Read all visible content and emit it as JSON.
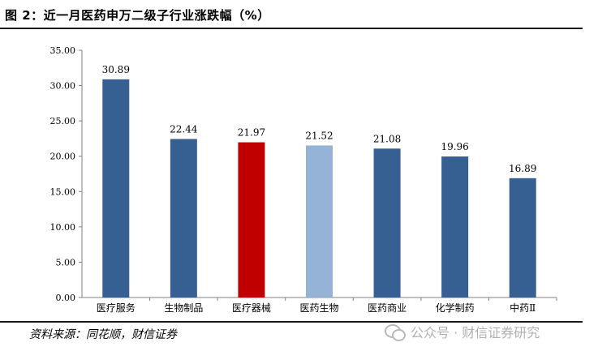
{
  "header": {
    "title": "图 2：近一月医药申万二级子行业涨跌幅（%）"
  },
  "footer": {
    "source": "资料来源：同花顺，财信证券",
    "watermark": "公众号 · 财信证券研究"
  },
  "chart_data": {
    "type": "bar",
    "title": "图 2：近一月医药申万二级子行业涨跌幅（%）",
    "categories": [
      "医疗服务",
      "生物制品",
      "医疗器械",
      "医药生物",
      "医药商业",
      "化学制药",
      "中药Ⅱ"
    ],
    "values": [
      30.89,
      22.44,
      21.97,
      21.52,
      21.08,
      19.96,
      16.89
    ],
    "value_labels": [
      "30.89",
      "22.44",
      "21.97",
      "21.52",
      "21.08",
      "19.96",
      "16.89"
    ],
    "bar_colors": [
      "#365f92",
      "#365f92",
      "#c00000",
      "#95b3d7",
      "#365f92",
      "#365f92",
      "#365f92"
    ],
    "yticks": [
      "0.00",
      "5.00",
      "10.00",
      "15.00",
      "20.00",
      "25.00",
      "30.00",
      "35.00"
    ],
    "ylim": [
      0,
      35
    ],
    "xlabel": "",
    "ylabel": "",
    "grid": false,
    "legend": "none"
  }
}
